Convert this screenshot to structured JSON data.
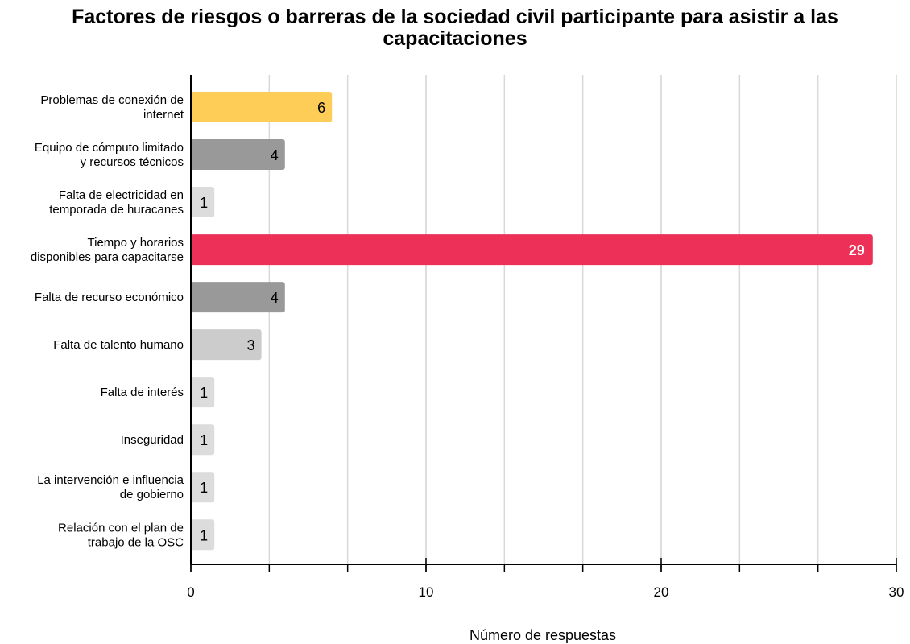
{
  "chart_data": {
    "type": "bar",
    "orientation": "horizontal",
    "title": "Factores de riesgos o barreras de la sociedad civil participante para asistir a las capacitaciones",
    "xlabel": "Número de respuestas",
    "ylabel": "",
    "xlim": [
      0,
      30
    ],
    "xticks": [
      0,
      10,
      20,
      30
    ],
    "grid": true,
    "categories": [
      [
        "Problemas de conexión de",
        "internet"
      ],
      [
        "Equipo de cómputo limitado",
        "y recursos técnicos"
      ],
      [
        "Falta de electricidad en",
        "temporada de huracanes"
      ],
      [
        "Tiempo y horarios",
        "disponibles para capacitarse"
      ],
      [
        "Falta de recurso económico"
      ],
      [
        "Falta de talento humano"
      ],
      [
        "Falta de interés"
      ],
      [
        "Inseguridad"
      ],
      [
        "La intervención e influencia",
        "de gobierno"
      ],
      [
        "Relación con el plan de",
        "trabajo de la OSC"
      ]
    ],
    "values": [
      6,
      4,
      1,
      29,
      4,
      3,
      1,
      1,
      1,
      1
    ],
    "colors": [
      "#fecd57",
      "#999999",
      "#dcdcdc",
      "#ec3057",
      "#999999",
      "#cccccc",
      "#dcdcdc",
      "#dcdcdc",
      "#dcdcdc",
      "#dcdcdc"
    ],
    "label_colors": [
      "#000000",
      "#000000",
      "#000000",
      "#ffffff",
      "#000000",
      "#000000",
      "#000000",
      "#000000",
      "#000000",
      "#000000"
    ]
  }
}
